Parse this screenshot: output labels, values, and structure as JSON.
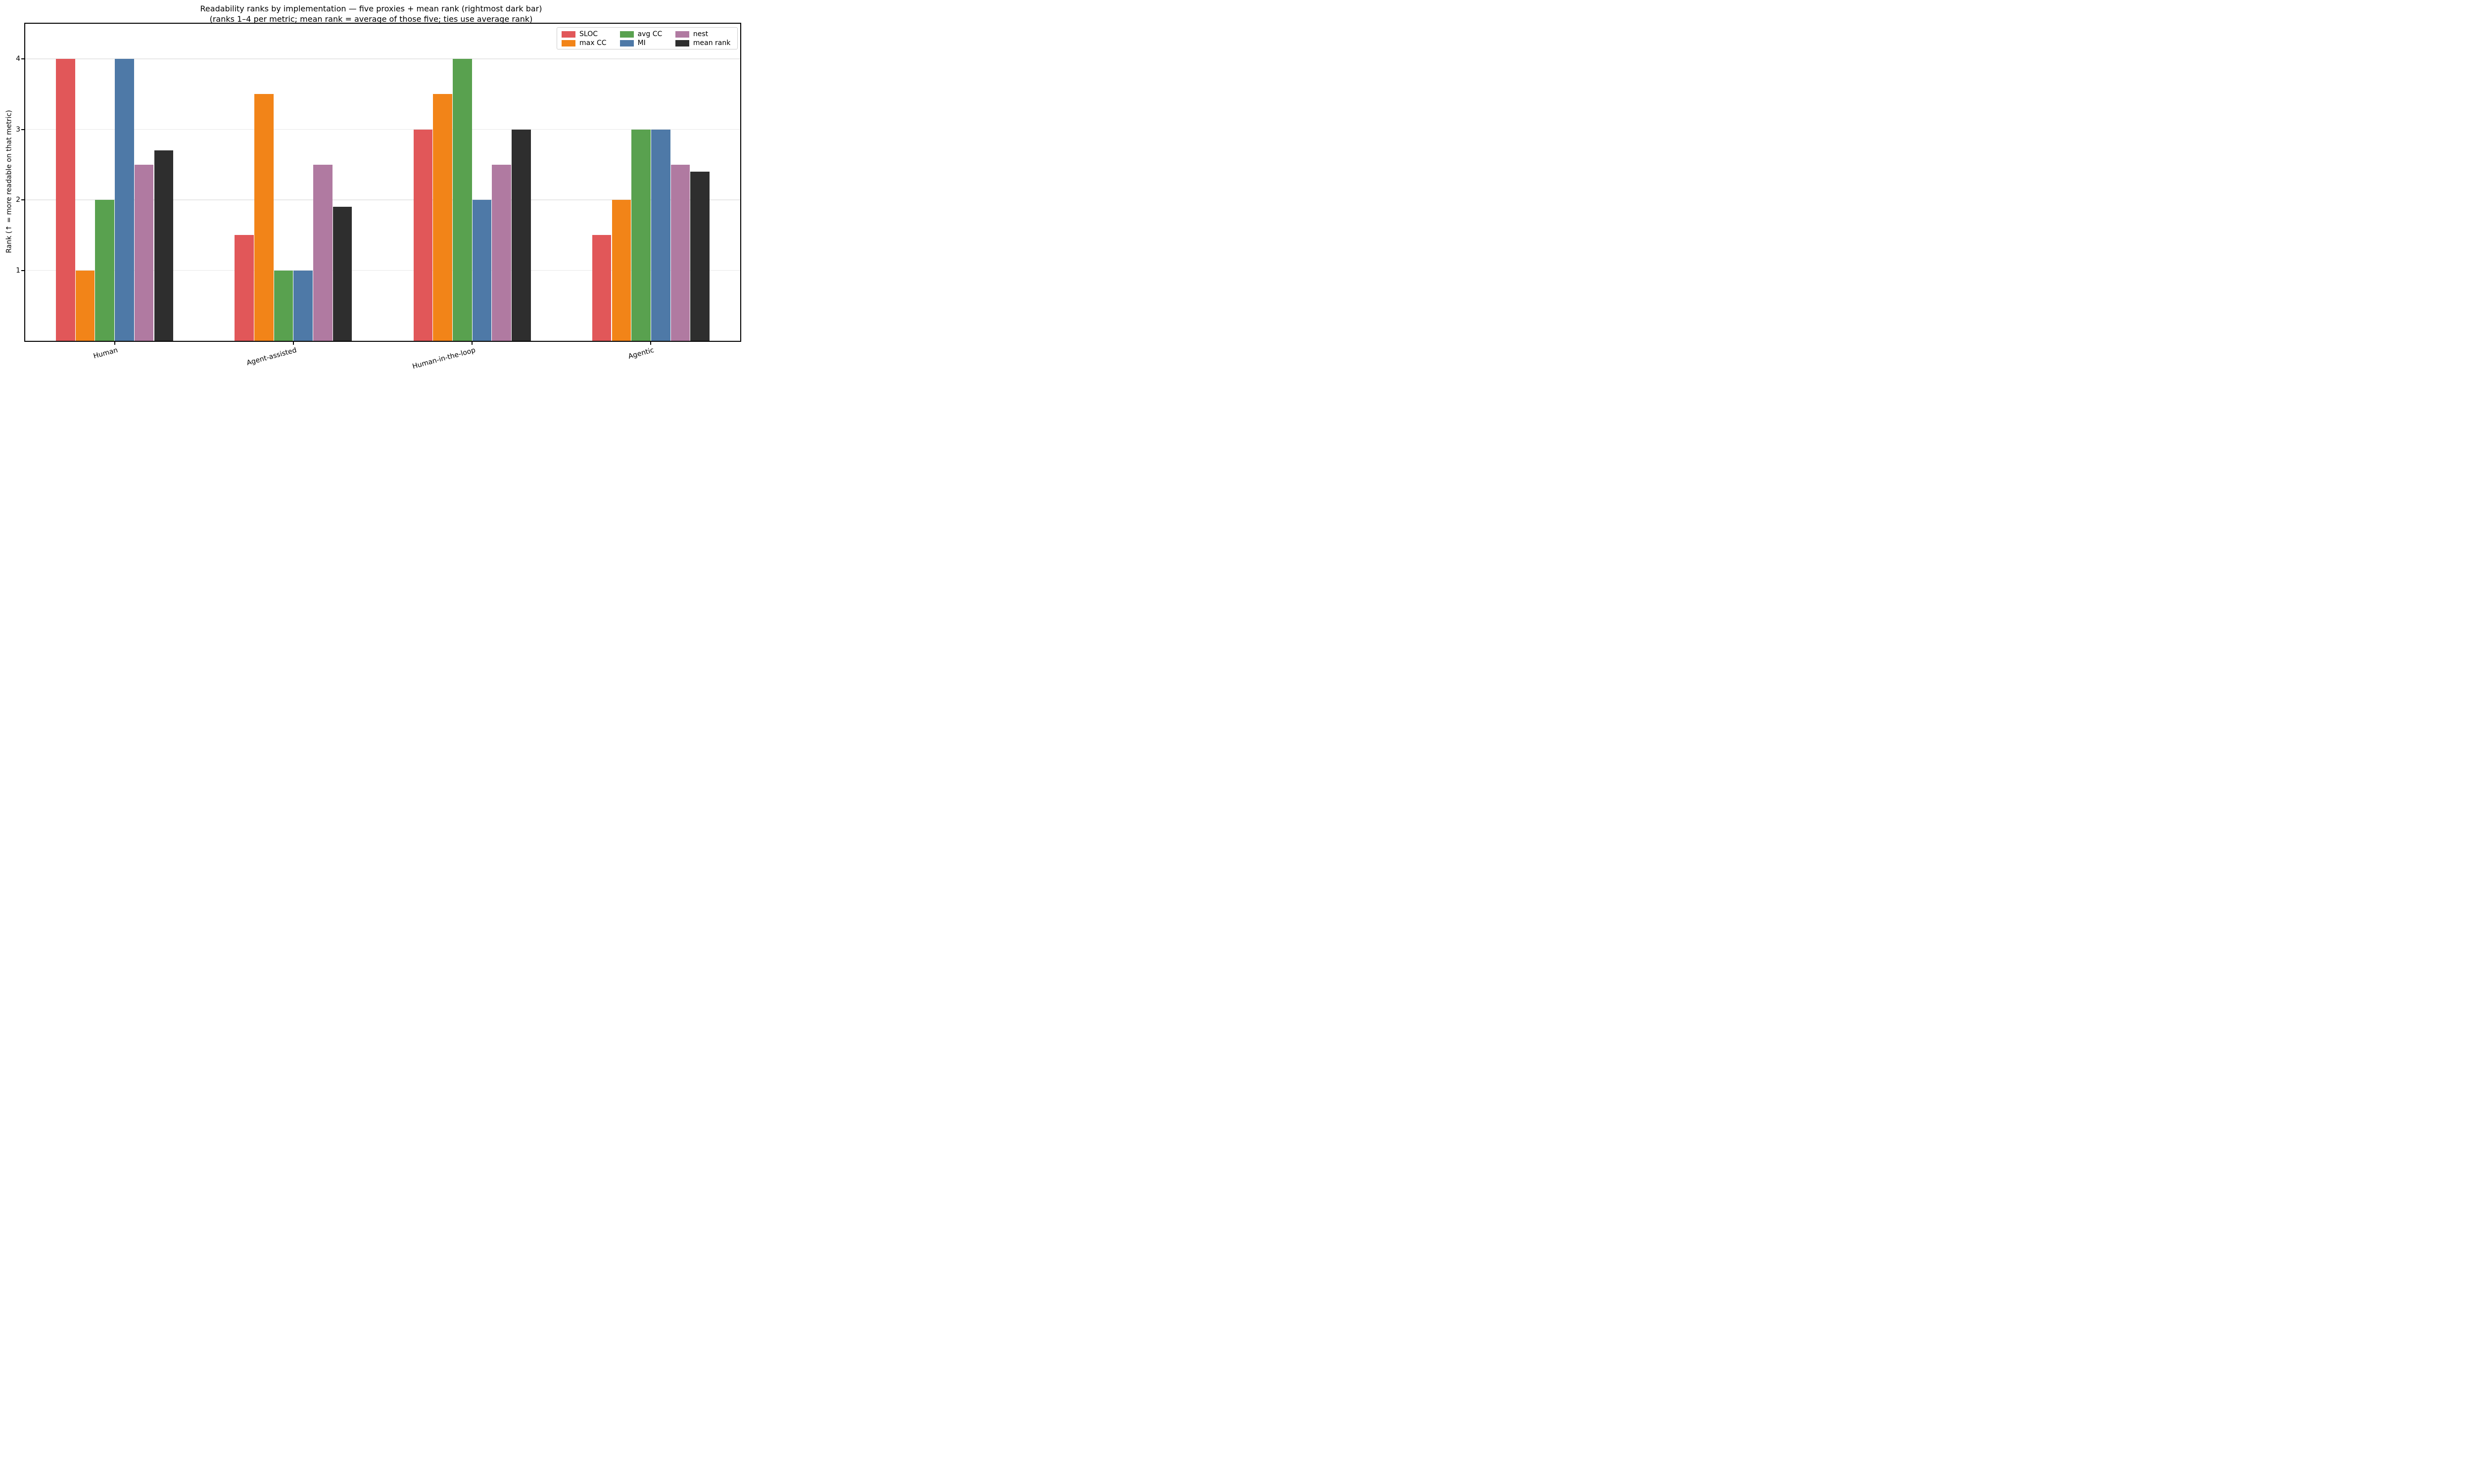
{
  "chart_data": {
    "type": "bar",
    "title": "Readability ranks by implementation — five proxies + mean rank (rightmost dark bar)",
    "subtitle": "(ranks 1–4 per metric; mean rank = average of those five; ties use average rank)",
    "ylabel": "Rank (↑ = more readable on that metric)",
    "xlabel": "",
    "categories": [
      "Human",
      "Agent-assisted",
      "Human-in-the-loop",
      "Agentic"
    ],
    "series": [
      {
        "name": "SLOC",
        "color": "#e15759",
        "values": [
          4,
          1.5,
          3,
          1.5
        ]
      },
      {
        "name": "max CC",
        "color": "#f28418",
        "values": [
          1,
          3.5,
          3.5,
          2
        ]
      },
      {
        "name": "avg CC",
        "color": "#59a14f",
        "values": [
          2,
          1,
          4,
          3
        ]
      },
      {
        "name": "MI",
        "color": "#4e79a7",
        "values": [
          4,
          1,
          2,
          3
        ]
      },
      {
        "name": "nest",
        "color": "#b07aa1",
        "values": [
          2.5,
          2.5,
          2.5,
          2.5
        ]
      },
      {
        "name": "mean rank",
        "color": "#2e2e2e",
        "values": [
          2.7,
          1.9,
          3.0,
          2.4
        ]
      }
    ],
    "ylim": [
      0,
      4.5
    ],
    "yticks": [
      1,
      2,
      3,
      4
    ],
    "ytick_labels": [
      "1",
      "2",
      "3",
      "4"
    ],
    "grid": "horizontal",
    "grid_color": "#e8e8e8",
    "spine_color": "#000000",
    "background_color": "#ffffff",
    "legend": {
      "position": "upper right",
      "columns": [
        [
          "SLOC",
          "max CC"
        ],
        [
          "avg CC",
          "MI"
        ],
        [
          "nest",
          "mean rank"
        ]
      ]
    }
  }
}
